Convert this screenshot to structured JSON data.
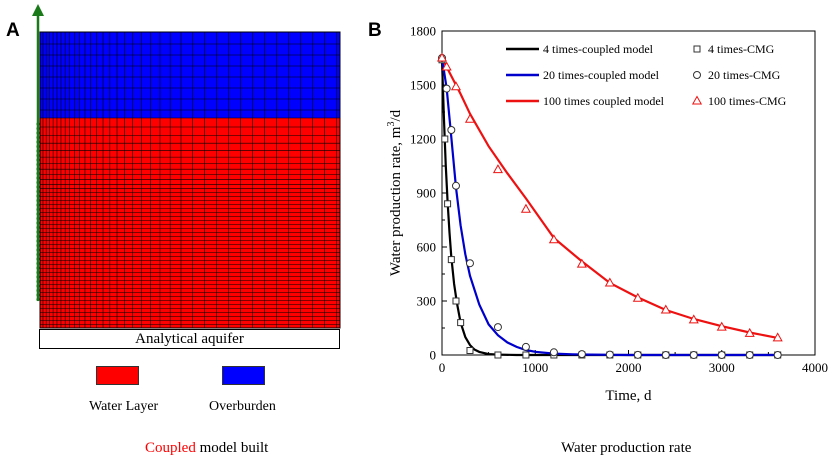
{
  "panel_a": {
    "letter": "A",
    "aquifer_label": "Analytical  aquifer",
    "legend": [
      {
        "label": "Water Layer",
        "color": "#ff0000"
      },
      {
        "label": "Overburden",
        "color": "#0000ff"
      }
    ],
    "colors": {
      "water": "#ff0000",
      "overburden": "#0000ff",
      "grid_line": "#000000",
      "arrow": "#1a7a1a"
    },
    "caption_highlight": "Coupled",
    "caption_rest": " model built",
    "caption_highlight_color": "#ff0000"
  },
  "panel_b": {
    "letter": "B",
    "caption": "Water production rate"
  },
  "chart_data": {
    "type": "line",
    "title": "",
    "xlabel": "Time, d",
    "ylabel": "Water production rate, m",
    "ylabel_sup": "3",
    "ylabel_tail": "/d",
    "xlim": [
      0,
      4000
    ],
    "ylim": [
      0,
      1800
    ],
    "xticks": [
      0,
      1000,
      2000,
      3000,
      4000
    ],
    "yticks": [
      0,
      300,
      600,
      900,
      1200,
      1500,
      1800
    ],
    "series": [
      {
        "name": "4 times-coupled model",
        "kind": "line",
        "color": "#000000",
        "x": [
          0,
          20,
          40,
          60,
          80,
          100,
          130,
          160,
          200,
          250,
          300,
          350,
          400,
          500,
          600,
          800,
          1000,
          1500,
          2000,
          3000,
          3600
        ],
        "y": [
          1640,
          1320,
          1060,
          850,
          680,
          545,
          395,
          290,
          180,
          100,
          55,
          30,
          17,
          5,
          2,
          0,
          0,
          0,
          0,
          0,
          0
        ]
      },
      {
        "name": "4 times-CMG",
        "kind": "marker",
        "marker": "square",
        "color": "#333333",
        "x": [
          0,
          30,
          60,
          100,
          150,
          200,
          300,
          600,
          900,
          1200,
          1500,
          1800,
          2100,
          2400,
          2700,
          3000,
          3300,
          3600
        ],
        "y": [
          1640,
          1200,
          840,
          530,
          300,
          180,
          25,
          0,
          0,
          0,
          0,
          0,
          0,
          0,
          0,
          0,
          0,
          0
        ]
      },
      {
        "name": "20 times-coupled model",
        "kind": "line",
        "color": "#0000cc",
        "x": [
          0,
          50,
          100,
          150,
          200,
          250,
          300,
          400,
          500,
          600,
          700,
          800,
          900,
          1000,
          1200,
          1400,
          1600,
          1800,
          2000,
          2500,
          3000,
          3600
        ],
        "y": [
          1650,
          1480,
          1210,
          930,
          720,
          560,
          440,
          280,
          170,
          110,
          70,
          45,
          28,
          18,
          8,
          4,
          2,
          1,
          0,
          0,
          0,
          0
        ]
      },
      {
        "name": "20 times-CMG",
        "kind": "marker",
        "marker": "circle",
        "color": "#333333",
        "x": [
          0,
          50,
          100,
          150,
          300,
          600,
          900,
          1200,
          1500,
          1800,
          2100,
          2400,
          2700,
          3000,
          3300,
          3600
        ],
        "y": [
          1650,
          1480,
          1250,
          940,
          510,
          155,
          45,
          15,
          5,
          2,
          1,
          0,
          0,
          0,
          0,
          0
        ]
      },
      {
        "name": "100 times coupled model",
        "kind": "line",
        "color": "#ee1111",
        "x": [
          0,
          100,
          200,
          300,
          500,
          700,
          900,
          1200,
          1500,
          1800,
          2100,
          2400,
          2700,
          3000,
          3300,
          3600
        ],
        "y": [
          1650,
          1550,
          1450,
          1340,
          1160,
          1010,
          870,
          650,
          520,
          400,
          320,
          250,
          200,
          160,
          125,
          95
        ]
      },
      {
        "name": "100 times-CMG",
        "kind": "marker",
        "marker": "triangle",
        "color": "#ee1111",
        "x": [
          0,
          50,
          150,
          300,
          600,
          900,
          1200,
          1500,
          1800,
          2100,
          2400,
          2700,
          3000,
          3300,
          3600
        ],
        "y": [
          1650,
          1600,
          1490,
          1310,
          1030,
          810,
          640,
          505,
          400,
          315,
          250,
          195,
          155,
          120,
          95
        ]
      }
    ],
    "legend": [
      {
        "name": "4 times-coupled model",
        "kind": "line",
        "color": "#000000"
      },
      {
        "name": "4 times-CMG",
        "kind": "marker",
        "marker": "square",
        "color": "#333333"
      },
      {
        "name": "20 times-coupled model",
        "kind": "line",
        "color": "#0000cc"
      },
      {
        "name": "20 times-CMG",
        "kind": "marker",
        "marker": "circle",
        "color": "#333333"
      },
      {
        "name": "100 times coupled model",
        "kind": "line",
        "color": "#ee1111"
      },
      {
        "name": "100 times-CMG",
        "kind": "marker",
        "marker": "triangle",
        "color": "#ee1111"
      }
    ],
    "legend_position": "top-right"
  }
}
